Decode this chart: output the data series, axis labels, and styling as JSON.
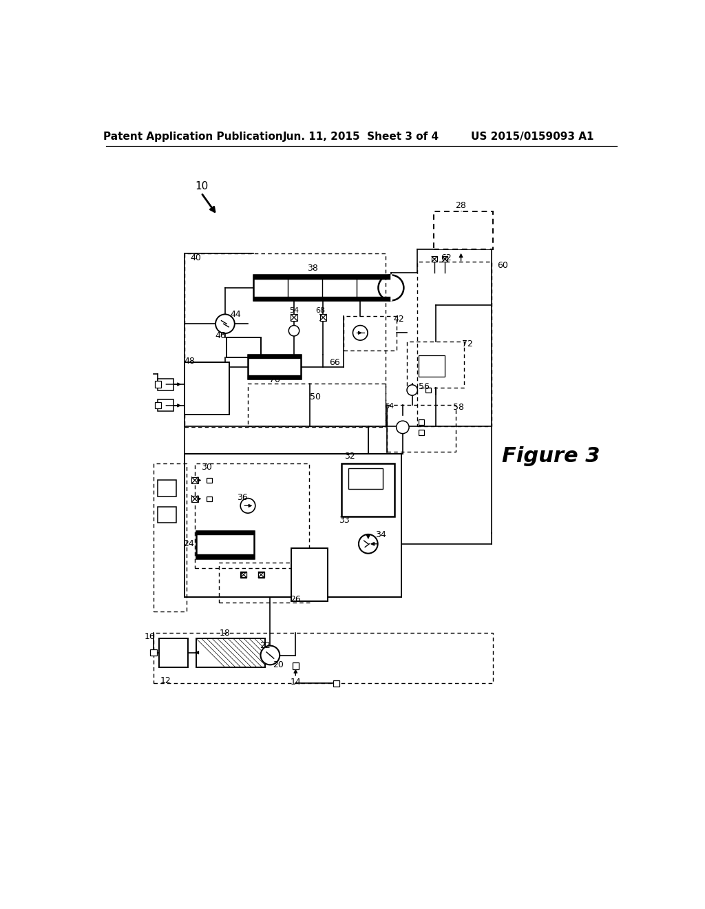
{
  "title_left": "Patent Application Publication",
  "title_center": "Jun. 11, 2015  Sheet 3 of 4",
  "title_right": "US 2015/0159093 A1",
  "figure_label": "Figure 3",
  "bg_color": "#ffffff"
}
